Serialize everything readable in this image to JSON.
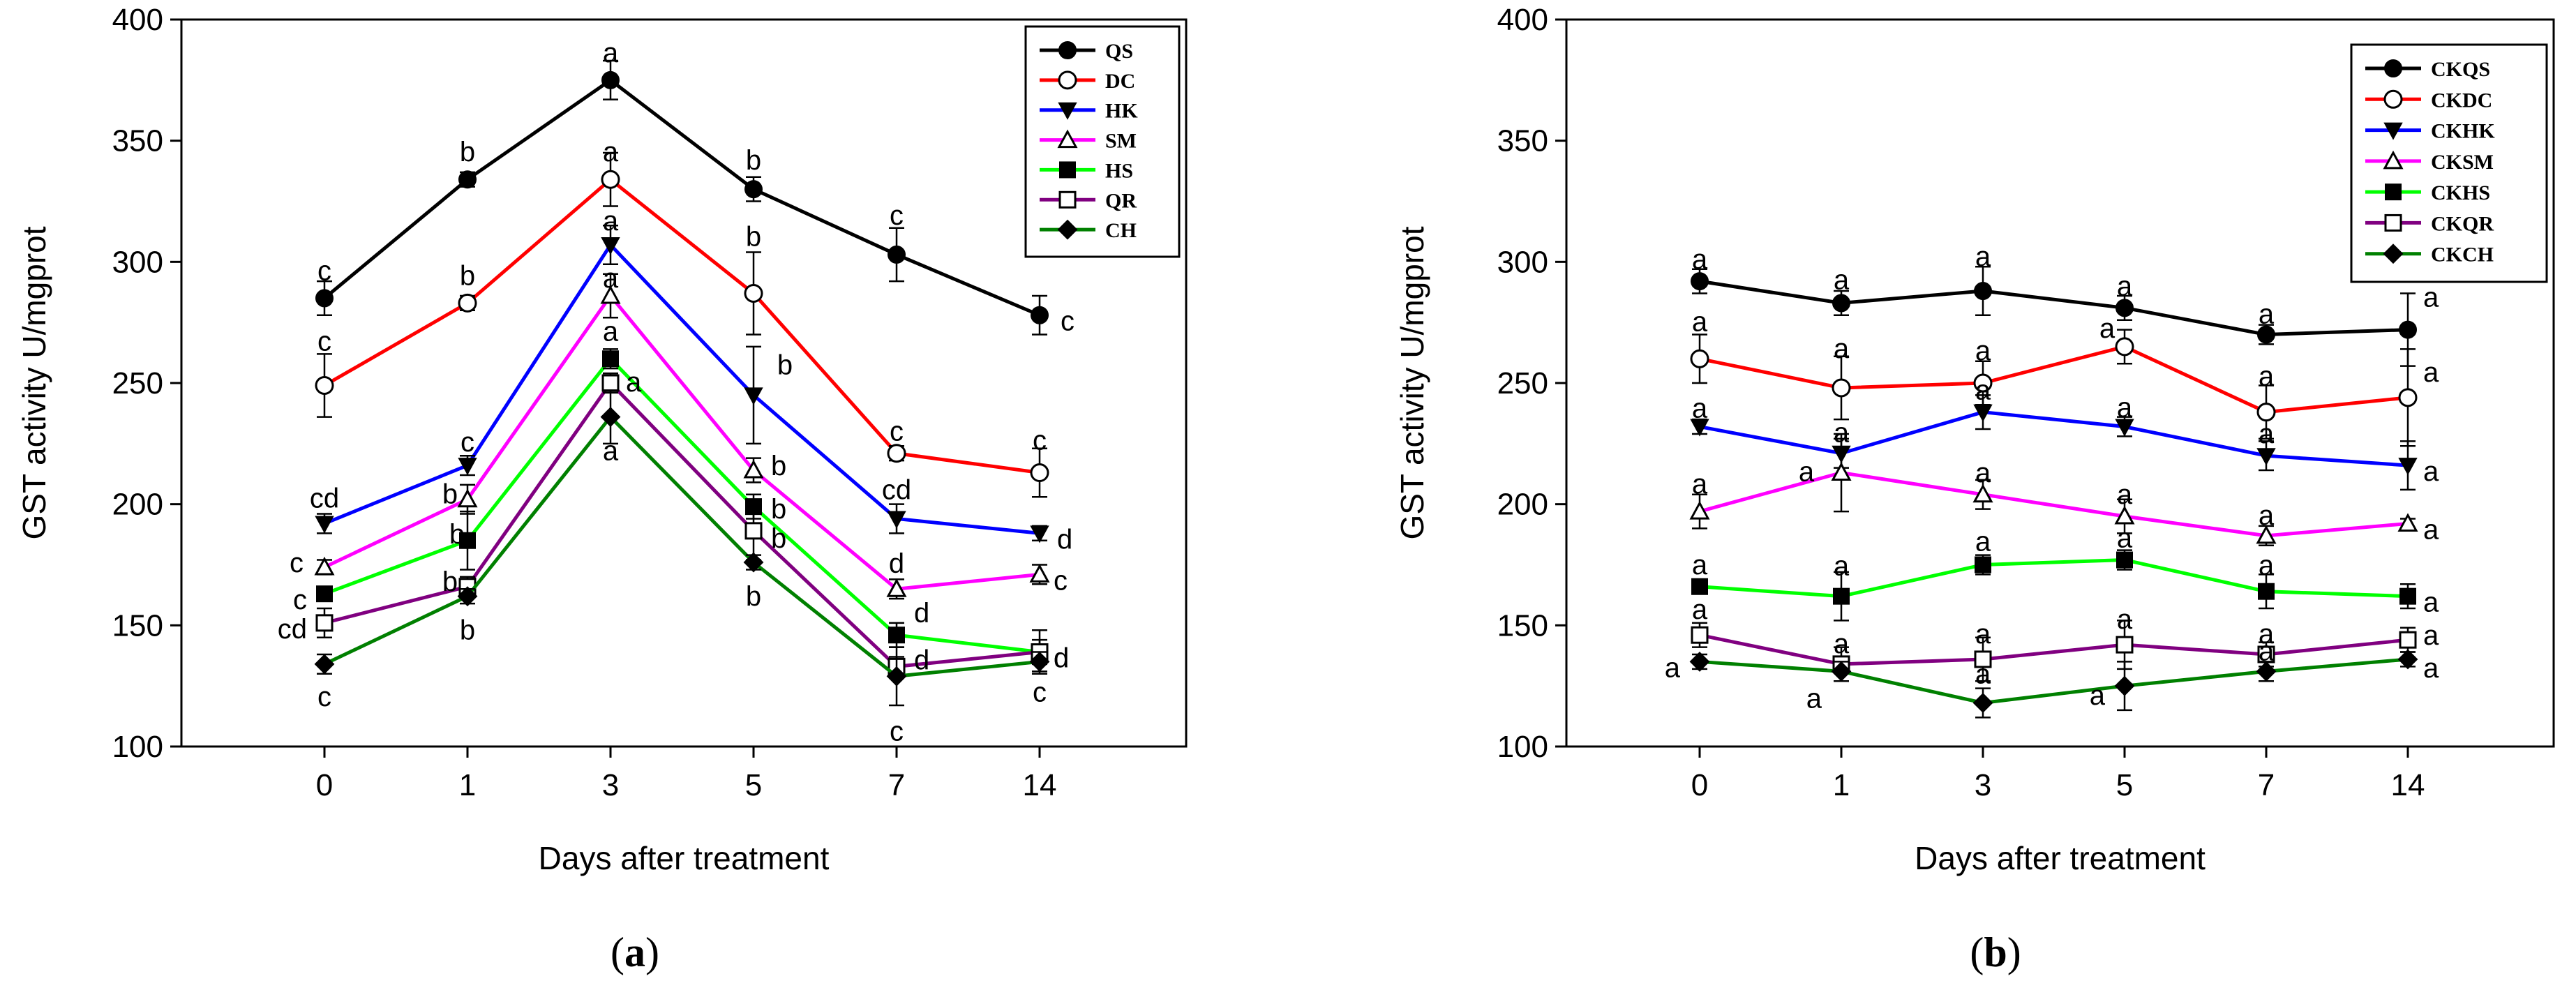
{
  "chart_data": [
    {
      "type": "line",
      "panel_label": "(a)",
      "xlabel": "Days after treatment",
      "ylabel": "GST activity  U/mgprot",
      "ylim": [
        100,
        400
      ],
      "yticks": [
        100,
        150,
        200,
        250,
        300,
        350,
        400
      ],
      "categories": [
        "0",
        "1",
        "3",
        "5",
        "7",
        "14"
      ],
      "legend_position": "top-right",
      "grid": false,
      "series": [
        {
          "name": "QS",
          "color": "#000000",
          "marker": "circle-filled",
          "values": [
            285,
            334,
            375,
            330,
            303,
            278
          ],
          "errors": [
            7,
            3,
            8,
            5,
            11,
            8
          ],
          "letters": [
            "c",
            "b",
            "a",
            "b",
            "c",
            "c"
          ]
        },
        {
          "name": "DC",
          "color": "#ff0000",
          "marker": "circle-open",
          "values": [
            249,
            283,
            334,
            287,
            221,
            213
          ],
          "errors": [
            13,
            3,
            11,
            17,
            3,
            10
          ],
          "letters": [
            "c",
            "b",
            "a",
            "b",
            "c",
            "c"
          ]
        },
        {
          "name": "HK",
          "color": "#0000ff",
          "marker": "triangle-down-filled",
          "values": [
            192,
            216,
            307,
            245,
            194,
            188
          ],
          "errors": [
            4,
            4,
            8,
            20,
            6,
            3
          ],
          "letters": [
            "cd",
            "c",
            "a",
            "b",
            "cd",
            "d"
          ]
        },
        {
          "name": "SM",
          "color": "#ff00ff",
          "marker": "triangle-up-open",
          "values": [
            174,
            202,
            286,
            214,
            165,
            171
          ],
          "errors": [
            3,
            6,
            9,
            5,
            4,
            4
          ],
          "letters": [
            "c",
            "b",
            "a",
            "b",
            "d",
            "c"
          ]
        },
        {
          "name": "HS",
          "color": "#00ff00",
          "marker": "square-filled",
          "values": [
            163,
            185,
            260,
            199,
            146,
            139
          ],
          "errors": [
            3,
            12,
            4,
            5,
            5,
            9
          ],
          "letters": [
            "c",
            "b",
            "a",
            "b",
            "d",
            "d"
          ]
        },
        {
          "name": "QR",
          "color": "#800080",
          "marker": "square-open",
          "values": [
            151,
            166,
            250,
            189,
            133,
            139
          ],
          "errors": [
            6,
            4,
            4,
            12,
            4,
            5
          ],
          "letters": [
            "cd",
            "b",
            "a",
            "b",
            "d",
            "d"
          ]
        },
        {
          "name": "CH",
          "color": "#008000",
          "marker": "diamond-filled",
          "values": [
            134,
            162,
            236,
            176,
            129,
            135
          ],
          "errors": [
            4,
            3,
            11,
            3,
            12,
            4
          ],
          "letters": [
            "c",
            "b",
            "a",
            "b",
            "c",
            "c"
          ]
        }
      ]
    },
    {
      "type": "line",
      "panel_label": "(b)",
      "xlabel": "Days after treatment",
      "ylabel": "GST activity U/mgprot",
      "ylim": [
        100,
        400
      ],
      "yticks": [
        100,
        150,
        200,
        250,
        300,
        350,
        400
      ],
      "categories": [
        "0",
        "1",
        "3",
        "5",
        "7",
        "14"
      ],
      "legend_position": "top-right",
      "grid": false,
      "series": [
        {
          "name": "CKQS",
          "color": "#000000",
          "marker": "circle-filled",
          "values": [
            292,
            283,
            288,
            281,
            270,
            272
          ],
          "errors": [
            5,
            5,
            10,
            5,
            4,
            15
          ],
          "letters": [
            "a",
            "a",
            "a",
            "a",
            "a",
            "a"
          ]
        },
        {
          "name": "CKDC",
          "color": "#ff0000",
          "marker": "circle-open",
          "values": [
            260,
            248,
            250,
            265,
            238,
            244
          ],
          "errors": [
            10,
            13,
            9,
            7,
            11,
            20
          ],
          "letters": [
            "a",
            "a",
            "a",
            "a",
            "a",
            "a"
          ]
        },
        {
          "name": "CKHK",
          "color": "#0000ff",
          "marker": "triangle-down-filled",
          "values": [
            232,
            221,
            238,
            232,
            220,
            216
          ],
          "errors": [
            3,
            6,
            7,
            4,
            6,
            10
          ],
          "letters": [
            "a",
            "a",
            "a",
            "a",
            "a",
            "a"
          ]
        },
        {
          "name": "CKSM",
          "color": "#ff00ff",
          "marker": "triangle-up-open",
          "values": [
            197,
            213,
            204,
            195,
            187,
            192
          ],
          "errors": [
            7,
            16,
            6,
            7,
            4,
            2
          ],
          "letters": [
            "a",
            "a",
            "a",
            "a",
            "a",
            "a"
          ]
        },
        {
          "name": "CKHS",
          "color": "#00ff00",
          "marker": "square-filled",
          "values": [
            166,
            162,
            175,
            177,
            164,
            162
          ],
          "errors": [
            2,
            10,
            4,
            4,
            7,
            5
          ],
          "letters": [
            "a",
            "a",
            "a",
            "a",
            "a",
            "a"
          ]
        },
        {
          "name": "CKQR",
          "color": "#800080",
          "marker": "square-open",
          "values": [
            146,
            134,
            136,
            142,
            138,
            144
          ],
          "errors": [
            5,
            7,
            9,
            10,
            5,
            5
          ],
          "letters": [
            "a",
            "a",
            "a",
            "a",
            "a",
            "a"
          ]
        },
        {
          "name": "CKCH",
          "color": "#008000",
          "marker": "diamond-filled",
          "values": [
            135,
            131,
            118,
            125,
            131,
            136
          ],
          "errors": [
            3,
            4,
            6,
            10,
            4,
            3
          ],
          "letters": [
            "a",
            "a",
            "a",
            "a",
            "a",
            "a"
          ]
        }
      ]
    }
  ]
}
